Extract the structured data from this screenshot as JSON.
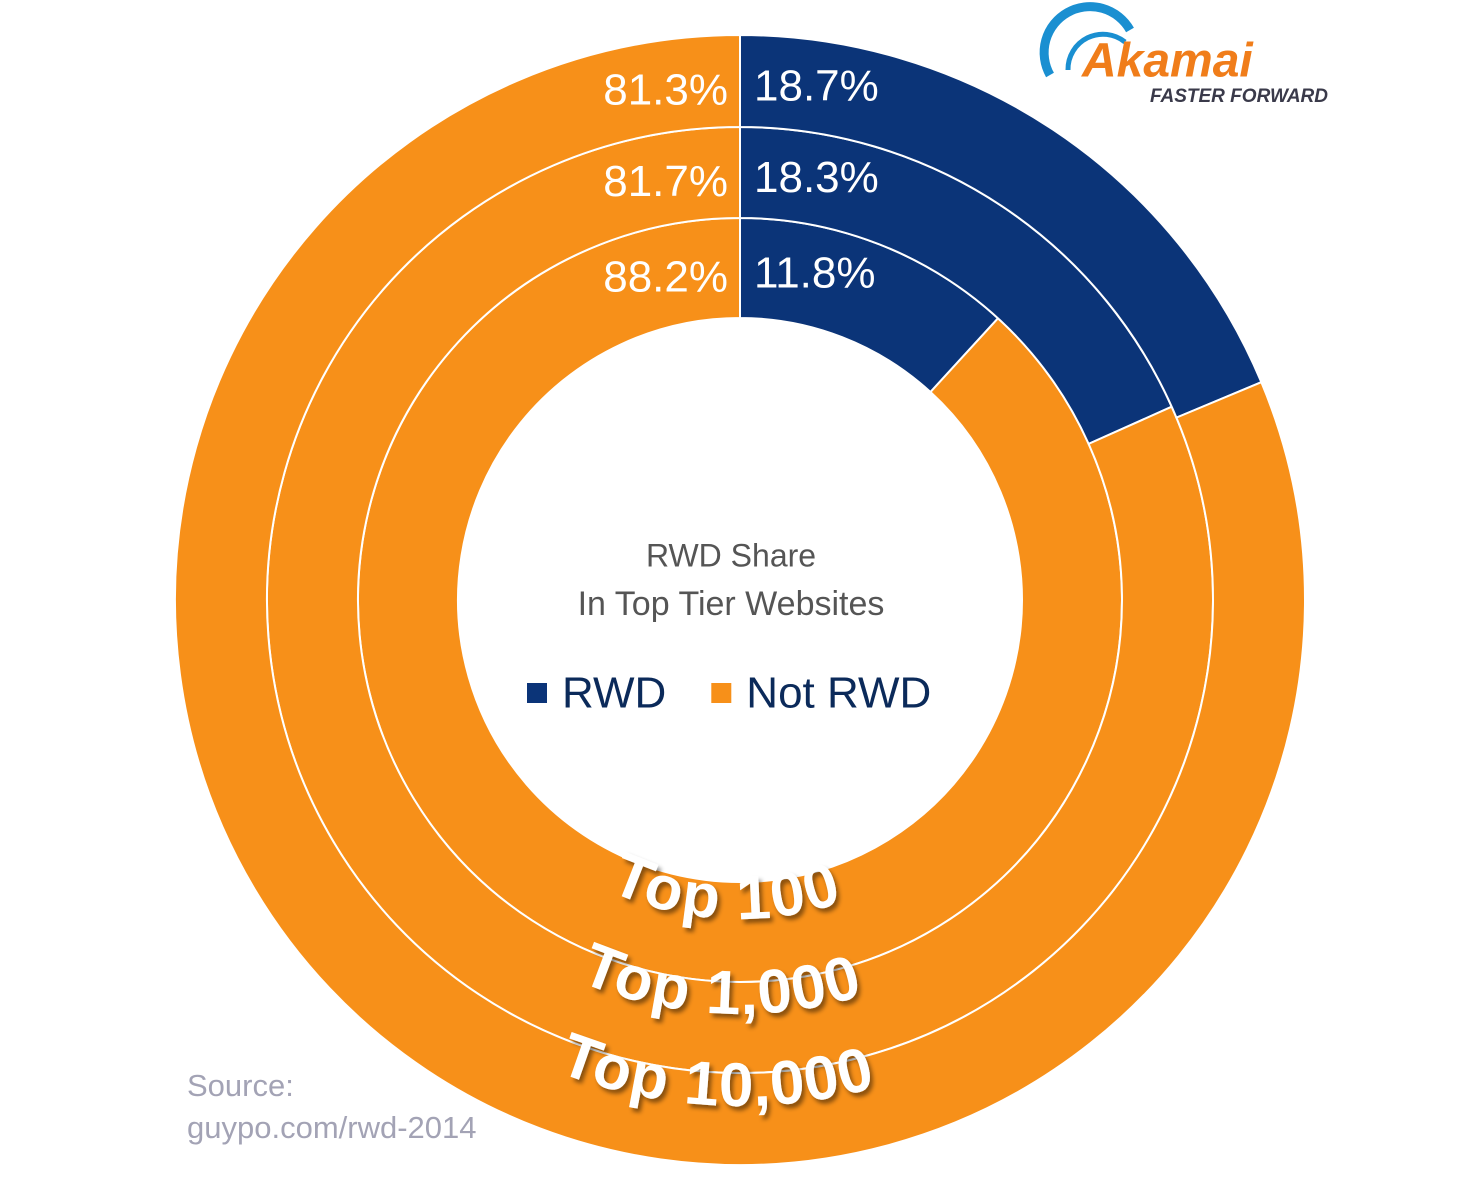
{
  "chart_data": {
    "type": "donut",
    "title": "RWD Share",
    "subtitle": "In Top Tier Websites",
    "categories": [
      "Top 100",
      "Top 1,000",
      "Top 10,000"
    ],
    "series": [
      {
        "name": "RWD",
        "color": "#0b3478",
        "values": [
          11.8,
          18.3,
          18.7
        ],
        "value_labels": [
          "11.8%",
          "18.3%",
          "18.7%"
        ]
      },
      {
        "name": "Not RWD",
        "color": "#f79019",
        "values": [
          88.2,
          81.7,
          81.3
        ],
        "value_labels": [
          "88.2%",
          "81.7%",
          "81.3%"
        ]
      }
    ],
    "source": [
      "Source:",
      "guypo.com/rwd-2014"
    ]
  },
  "logo": {
    "name": "Akamai",
    "tagline": "FASTER FORWARD"
  }
}
